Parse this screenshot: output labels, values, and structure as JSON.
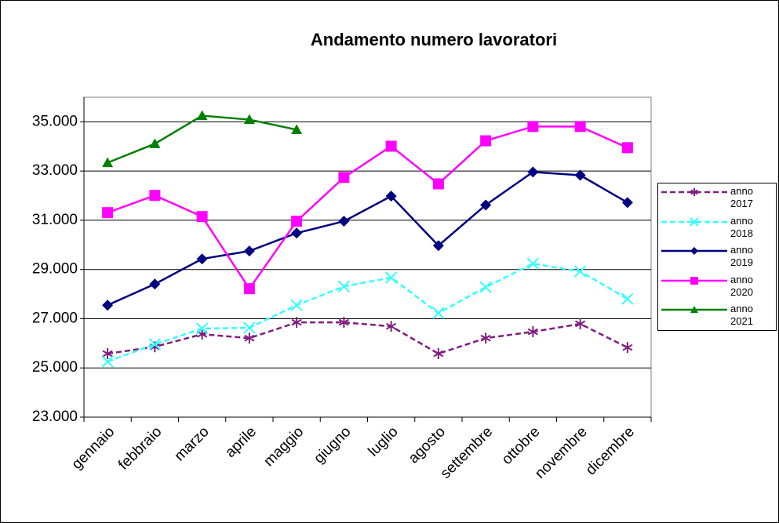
{
  "chart_data": {
    "type": "line",
    "title": "Andamento numero lavoratori",
    "categories": [
      "gennaio",
      "febbraio",
      "marzo",
      "aprile",
      "maggio",
      "giugno",
      "luglio",
      "agosto",
      "settembre",
      "ottobre",
      "novembre",
      "dicembre"
    ],
    "ylim": [
      23000,
      36000
    ],
    "yticks": [
      {
        "value": 23000,
        "label": "23.000"
      },
      {
        "value": 25000,
        "label": "25.000"
      },
      {
        "value": 27000,
        "label": "27.000"
      },
      {
        "value": 29000,
        "label": "29.000"
      },
      {
        "value": 31000,
        "label": "31.000"
      },
      {
        "value": 33000,
        "label": "33.000"
      },
      {
        "value": 35000,
        "label": "35.000"
      }
    ],
    "grid": true,
    "legend": "right",
    "series": [
      {
        "name": "anno 2017",
        "color": "#7f1f7f",
        "marker": "star",
        "dashed": true,
        "values": [
          25580,
          25860,
          26370,
          26210,
          26850,
          26850,
          26690,
          25580,
          26210,
          26470,
          26790,
          25830
        ]
      },
      {
        "name": "anno 2018",
        "color": "#33ffff",
        "marker": "x",
        "dashed": true,
        "values": [
          25260,
          25960,
          26600,
          26630,
          27550,
          28310,
          28670,
          27230,
          28280,
          29240,
          28920,
          27810
        ]
      },
      {
        "name": "anno 2019",
        "color": "#000080",
        "marker": "diamond",
        "dashed": false,
        "values": [
          27550,
          28410,
          29430,
          29750,
          30480,
          30960,
          31980,
          29970,
          31620,
          32960,
          32830,
          31720
        ]
      },
      {
        "name": "anno 2020",
        "color": "#ff00ff",
        "marker": "square",
        "dashed": false,
        "values": [
          31310,
          32010,
          31150,
          28220,
          30960,
          32740,
          34010,
          32480,
          34230,
          34810,
          34810,
          33950
        ]
      },
      {
        "name": "anno 2021",
        "color": "#008000",
        "marker": "triangle",
        "dashed": false,
        "values": [
          33340,
          34110,
          35250,
          35090,
          34680,
          null,
          null,
          null,
          null,
          null,
          null,
          null
        ]
      }
    ]
  }
}
